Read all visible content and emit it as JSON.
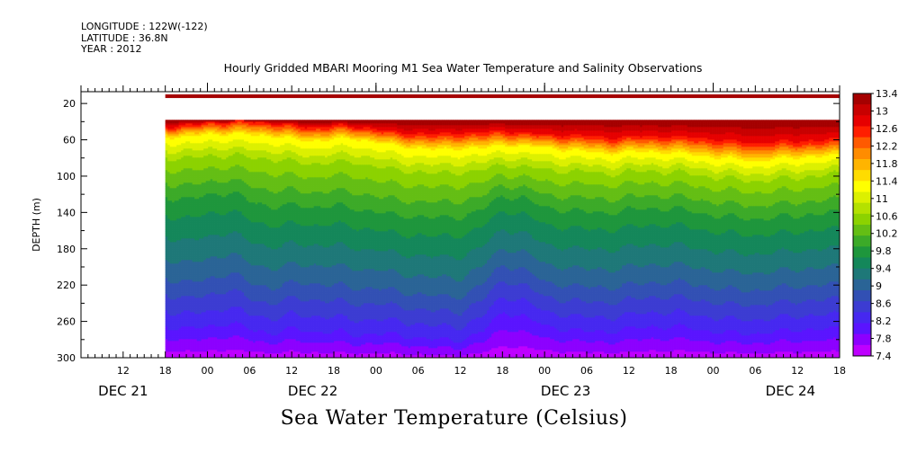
{
  "header": {
    "longitude": "LONGITUDE : 122W(-122)",
    "latitude": "LATITUDE : 36.8N",
    "year": "YEAR : 2012"
  },
  "chart_data": {
    "type": "heatmap",
    "title": "Hourly Gridded MBARI Mooring M1 Sea Water Temperature and Salinity Observations",
    "footer_title": "Sea Water Temperature (Celsius)",
    "ylabel": "DEPTH (m)",
    "y_ticks": [
      "20",
      "60",
      "100",
      "140",
      "180",
      "220",
      "260",
      "300"
    ],
    "y_range": [
      7,
      300
    ],
    "x_ticks": [
      "12",
      "18",
      "00",
      "06",
      "12",
      "18",
      "00",
      "06",
      "12",
      "18",
      "00",
      "06",
      "12",
      "18",
      "00",
      "06",
      "12",
      "18"
    ],
    "x_tick_hours": [
      -6,
      0,
      6,
      12,
      18,
      24,
      30,
      36,
      42,
      48,
      54,
      60,
      66,
      72,
      78,
      84,
      90,
      96
    ],
    "x_range_hours": [
      -12,
      96
    ],
    "date_labels": [
      {
        "label": "DEC 21",
        "hour": -6
      },
      {
        "label": "DEC 22",
        "hour": 21
      },
      {
        "label": "DEC 23",
        "hour": 57
      },
      {
        "label": "DEC 24",
        "hour": 89
      }
    ],
    "data_start_hour": 0,
    "surface_band": {
      "depth_range": [
        10,
        14
      ],
      "value": 13.4
    },
    "data_gap_depth_range": [
      14,
      38
    ],
    "colorbar": {
      "labels": [
        "13.4",
        "13",
        "12.6",
        "12.2",
        "11.8",
        "11.4",
        "11",
        "10.6",
        "10.2",
        "9.8",
        "9.4",
        "9",
        "8.6",
        "8.2",
        "7.8",
        "7.4"
      ],
      "min": 7.4,
      "max": 13.4,
      "colors": [
        "#a50000",
        "#c80000",
        "#e60000",
        "#ff1e00",
        "#ff5a00",
        "#ff8c00",
        "#ffb400",
        "#ffdc00",
        "#ffff00",
        "#dcf000",
        "#b4e100",
        "#8cd200",
        "#64be14",
        "#3caa28",
        "#1e963c",
        "#14875a",
        "#1e7878",
        "#2a6496",
        "#3250b4",
        "#3c3cd2",
        "#4628f0",
        "#5a14ff",
        "#8c00ff",
        "#be00ff"
      ]
    },
    "profile_hours": [
      0,
      3,
      6,
      9,
      12,
      15,
      18,
      21,
      24,
      27,
      30,
      33,
      36,
      39,
      42,
      45,
      48,
      51,
      54,
      57,
      60,
      63,
      66,
      69,
      72,
      75,
      78,
      81,
      84,
      87,
      90,
      93,
      96
    ],
    "isotherm_depths": {
      "levels": [
        12.6,
        11.4,
        10.6,
        9.8,
        9.0,
        8.2
      ],
      "depths": [
        [
          45,
          56,
          80,
          128,
          205,
          262
        ],
        [
          44,
          56,
          82,
          132,
          210,
          265
        ],
        [
          40,
          52,
          78,
          125,
          205,
          262
        ],
        [
          40,
          53,
          78,
          123,
          198,
          258
        ],
        [
          39,
          53,
          80,
          133,
          210,
          265
        ],
        [
          41,
          55,
          82,
          140,
          215,
          270
        ],
        [
          44,
          58,
          85,
          138,
          210,
          265
        ],
        [
          46,
          60,
          87,
          140,
          210,
          268
        ],
        [
          44,
          58,
          85,
          138,
          212,
          268
        ],
        [
          45,
          58,
          86,
          142,
          215,
          272
        ],
        [
          48,
          62,
          90,
          145,
          215,
          270
        ],
        [
          52,
          66,
          95,
          150,
          220,
          272
        ],
        [
          53,
          68,
          96,
          150,
          222,
          275
        ],
        [
          54,
          70,
          98,
          152,
          225,
          278
        ],
        [
          52,
          68,
          96,
          150,
          225,
          278
        ],
        [
          52,
          68,
          94,
          142,
          210,
          268
        ],
        [
          50,
          65,
          88,
          125,
          190,
          245
        ],
        [
          52,
          66,
          90,
          128,
          195,
          250
        ],
        [
          54,
          68,
          94,
          140,
          210,
          262
        ],
        [
          55,
          70,
          95,
          142,
          212,
          265
        ],
        [
          56,
          72,
          96,
          145,
          215,
          268
        ],
        [
          58,
          74,
          98,
          145,
          215,
          268
        ],
        [
          57,
          72,
          96,
          142,
          212,
          265
        ],
        [
          56,
          72,
          95,
          140,
          210,
          262
        ],
        [
          57,
          73,
          96,
          140,
          208,
          262
        ],
        [
          58,
          75,
          98,
          144,
          212,
          264
        ],
        [
          60,
          78,
          102,
          148,
          215,
          268
        ],
        [
          62,
          80,
          104,
          150,
          218,
          270
        ],
        [
          64,
          82,
          106,
          152,
          218,
          270
        ],
        [
          63,
          80,
          104,
          150,
          216,
          268
        ],
        [
          62,
          78,
          102,
          148,
          214,
          266
        ],
        [
          61,
          77,
          100,
          146,
          212,
          265
        ],
        [
          60,
          76,
          98,
          145,
          212,
          265
        ]
      ]
    }
  }
}
